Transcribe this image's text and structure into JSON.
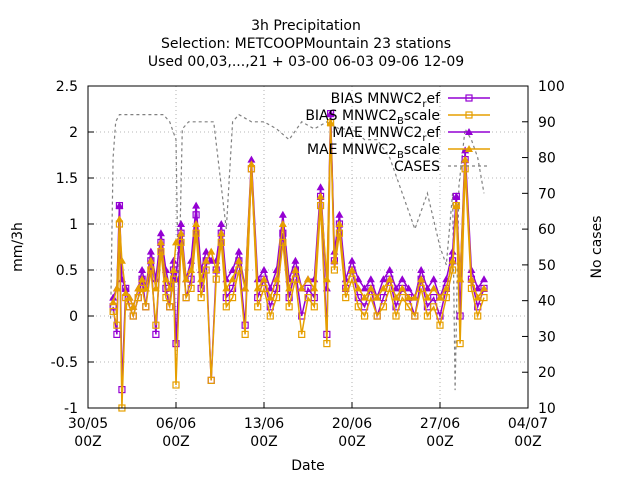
{
  "chart_data": {
    "type": "line",
    "title_lines": [
      "3h Precipitation",
      "Selection: METCOOPMountain      23 stations",
      "Used 00,03,...,21 + 03-00 06-03 09-06 12-09"
    ],
    "xlabel": "Date",
    "ylabel": "mm/3h",
    "y2label": "No cases",
    "x_ticks": [
      {
        "day": 0,
        "line1": "30/05",
        "line2": "00Z"
      },
      {
        "day": 7,
        "line1": "06/06",
        "line2": "00Z"
      },
      {
        "day": 14,
        "line1": "13/06",
        "line2": "00Z"
      },
      {
        "day": 21,
        "line1": "20/06",
        "line2": "00Z"
      },
      {
        "day": 28,
        "line1": "27/06",
        "line2": "00Z"
      },
      {
        "day": 35,
        "line1": "04/07",
        "line2": "00Z"
      }
    ],
    "xlim": [
      0,
      35
    ],
    "ylim": [
      -1,
      2.5
    ],
    "y_ticks": [
      "-1",
      "-0.5",
      "0",
      "0.5",
      "1",
      "1.5",
      "2",
      "2.5"
    ],
    "y2lim": [
      10,
      100
    ],
    "y2_ticks": [
      "10",
      "20",
      "30",
      "40",
      "50",
      "60",
      "70",
      "80",
      "90",
      "100"
    ],
    "grid": true,
    "legend_position": "top-right",
    "legend": [
      {
        "label_main": "BIAS MNWC2",
        "label_sub": "r",
        "label_tail": "ef",
        "color": "#9400d3",
        "marker": "square"
      },
      {
        "label_main": "BIAS MNWC2",
        "label_sub": "B",
        "label_tail": "scale",
        "color": "#e69f00",
        "marker": "square"
      },
      {
        "label_main": "MAE MNWC2",
        "label_sub": "r",
        "label_tail": "ef",
        "color": "#9400d3",
        "marker": "triangle"
      },
      {
        "label_main": "MAE MNWC2",
        "label_sub": "B",
        "label_tail": "scale",
        "color": "#e69f00",
        "marker": "triangle"
      },
      {
        "label_main": "CASES",
        "label_sub": "",
        "label_tail": "",
        "color": "#808080",
        "marker": "dashed"
      }
    ],
    "series": [
      {
        "name": "BIAS MNWC2_ref",
        "x": [
          2.0,
          2.3,
          2.5,
          2.7,
          3.0,
          3.3,
          3.6,
          4.0,
          4.3,
          4.6,
          5.0,
          5.4,
          5.8,
          6.2,
          6.5,
          6.8,
          7.0,
          7.4,
          7.8,
          8.2,
          8.6,
          9.0,
          9.4,
          9.8,
          10.2,
          10.6,
          11.0,
          11.5,
          12.0,
          12.5,
          13.0,
          13.5,
          14.0,
          14.5,
          15.0,
          15.5,
          16.0,
          16.5,
          17.0,
          17.5,
          18.0,
          18.5,
          19.0,
          19.3,
          19.6,
          20.0,
          20.5,
          21.0,
          21.5,
          22.0,
          22.5,
          23.0,
          23.5,
          24.0,
          24.5,
          25.0,
          25.5,
          26.0,
          26.5,
          27.0,
          27.5,
          28.0,
          28.5,
          29.0,
          29.3,
          29.6,
          30.0,
          30.5,
          31.0,
          31.5
        ],
        "y": [
          0.1,
          -0.2,
          1.2,
          -0.8,
          0.3,
          0.1,
          0.0,
          0.2,
          0.4,
          0.1,
          0.6,
          -0.2,
          0.8,
          0.3,
          0.1,
          0.5,
          -0.3,
          0.9,
          0.2,
          0.4,
          1.1,
          0.3,
          0.6,
          -0.7,
          0.5,
          0.9,
          0.2,
          0.3,
          0.6,
          -0.1,
          1.6,
          0.2,
          0.4,
          0.1,
          0.3,
          0.9,
          0.2,
          0.5,
          0.0,
          0.3,
          0.2,
          1.3,
          -0.2,
          2.2,
          0.6,
          1.0,
          0.3,
          0.5,
          0.2,
          0.1,
          0.3,
          0.0,
          0.2,
          0.4,
          0.1,
          0.3,
          0.2,
          0.0,
          0.4,
          0.1,
          0.2,
          0.0,
          0.3,
          0.6,
          1.3,
          0.0,
          1.7,
          0.4,
          0.1,
          0.3
        ]
      },
      {
        "name": "BIAS MNWC2_Bscale",
        "x": [
          2.0,
          2.3,
          2.5,
          2.7,
          3.0,
          3.3,
          3.6,
          4.0,
          4.3,
          4.6,
          5.0,
          5.4,
          5.8,
          6.2,
          6.5,
          6.8,
          7.0,
          7.4,
          7.8,
          8.2,
          8.6,
          9.0,
          9.4,
          9.8,
          10.2,
          10.6,
          11.0,
          11.5,
          12.0,
          12.5,
          13.0,
          13.5,
          14.0,
          14.5,
          15.0,
          15.5,
          16.0,
          16.5,
          17.0,
          17.5,
          18.0,
          18.5,
          19.0,
          19.3,
          19.6,
          20.0,
          20.5,
          21.0,
          21.5,
          22.0,
          22.5,
          23.0,
          23.5,
          24.0,
          24.5,
          25.0,
          25.5,
          26.0,
          26.5,
          27.0,
          27.5,
          28.0,
          28.5,
          29.0,
          29.3,
          29.6,
          30.0,
          30.5,
          31.0,
          31.5
        ],
        "y": [
          0.05,
          -0.1,
          1.0,
          -1.0,
          0.2,
          0.1,
          0.0,
          0.2,
          0.3,
          0.1,
          0.5,
          -0.1,
          0.7,
          0.2,
          0.1,
          0.4,
          -0.75,
          0.8,
          0.2,
          0.3,
          0.9,
          0.2,
          0.5,
          -0.7,
          0.4,
          0.8,
          0.1,
          0.2,
          0.5,
          -0.2,
          1.6,
          0.1,
          0.3,
          0.0,
          0.2,
          0.8,
          0.1,
          0.4,
          -0.2,
          0.2,
          0.1,
          1.2,
          -0.3,
          2.1,
          0.5,
          0.9,
          0.2,
          0.4,
          0.1,
          0.0,
          0.2,
          0.0,
          0.1,
          0.3,
          0.0,
          0.2,
          0.1,
          0.0,
          0.3,
          0.0,
          0.1,
          -0.1,
          0.2,
          0.5,
          1.2,
          -0.3,
          1.6,
          0.3,
          0.0,
          0.2
        ]
      },
      {
        "name": "MAE MNWC2_ref",
        "x": [
          2.0,
          2.3,
          2.5,
          2.7,
          3.0,
          3.3,
          3.6,
          4.0,
          4.3,
          4.6,
          5.0,
          5.4,
          5.8,
          6.2,
          6.5,
          6.8,
          7.0,
          7.4,
          7.8,
          8.2,
          8.6,
          9.0,
          9.4,
          9.8,
          10.2,
          10.6,
          11.0,
          11.5,
          12.0,
          12.5,
          13.0,
          13.5,
          14.0,
          14.5,
          15.0,
          15.5,
          16.0,
          16.5,
          17.0,
          17.5,
          18.0,
          18.5,
          19.0,
          19.3,
          19.6,
          20.0,
          20.5,
          21.0,
          21.5,
          22.0,
          22.5,
          23.0,
          23.5,
          24.0,
          24.5,
          25.0,
          25.5,
          26.0,
          26.5,
          27.0,
          27.5,
          28.0,
          28.5,
          29.0,
          29.3,
          29.6,
          30.0,
          30.5,
          31.0,
          31.5
        ],
        "y": [
          0.2,
          0.3,
          1.2,
          0.4,
          0.3,
          0.2,
          0.1,
          0.3,
          0.5,
          0.3,
          0.7,
          0.4,
          0.9,
          0.5,
          0.3,
          0.6,
          0.4,
          1.0,
          0.4,
          0.6,
          1.2,
          0.5,
          0.7,
          0.6,
          0.6,
          1.0,
          0.4,
          0.5,
          0.7,
          0.3,
          1.7,
          0.4,
          0.5,
          0.3,
          0.5,
          1.1,
          0.4,
          0.6,
          0.3,
          0.4,
          0.4,
          1.4,
          0.3,
          2.2,
          0.7,
          1.1,
          0.4,
          0.6,
          0.4,
          0.3,
          0.4,
          0.2,
          0.4,
          0.5,
          0.3,
          0.4,
          0.3,
          0.2,
          0.5,
          0.3,
          0.4,
          0.2,
          0.4,
          0.7,
          1.3,
          0.4,
          1.8,
          0.5,
          0.3,
          0.4
        ]
      },
      {
        "name": "MAE MNWC2_Bscale",
        "x": [
          2.0,
          2.3,
          2.5,
          2.7,
          3.0,
          3.3,
          3.6,
          4.0,
          4.3,
          4.6,
          5.0,
          5.4,
          5.8,
          6.2,
          6.5,
          6.8,
          7.0,
          7.4,
          7.8,
          8.2,
          8.6,
          9.0,
          9.4,
          9.8,
          10.2,
          10.6,
          11.0,
          11.5,
          12.0,
          12.5,
          13.0,
          13.5,
          14.0,
          14.5,
          15.0,
          15.5,
          16.0,
          16.5,
          17.0,
          17.5,
          18.0,
          18.5,
          19.0,
          19.3,
          19.6,
          20.0,
          20.5,
          21.0,
          21.5,
          22.0,
          22.5,
          23.0,
          23.5,
          24.0,
          24.5,
          25.0,
          25.5,
          26.0,
          26.5,
          27.0,
          27.5,
          28.0,
          28.5,
          29.0,
          29.3,
          29.6,
          30.0,
          30.5,
          31.0,
          31.5
        ],
        "y": [
          0.15,
          0.3,
          1.05,
          0.6,
          0.25,
          0.2,
          0.1,
          0.3,
          0.4,
          0.3,
          0.6,
          0.3,
          0.8,
          0.4,
          0.3,
          0.5,
          0.8,
          0.9,
          0.4,
          0.5,
          1.0,
          0.4,
          0.6,
          0.7,
          0.5,
          0.9,
          0.3,
          0.4,
          0.6,
          0.3,
          1.65,
          0.3,
          0.4,
          0.2,
          0.4,
          1.0,
          0.3,
          0.5,
          0.3,
          0.4,
          0.3,
          1.3,
          0.4,
          2.1,
          0.6,
          1.0,
          0.3,
          0.5,
          0.3,
          0.2,
          0.3,
          0.2,
          0.3,
          0.4,
          0.2,
          0.3,
          0.2,
          0.2,
          0.4,
          0.2,
          0.3,
          0.2,
          0.3,
          0.6,
          1.2,
          0.4,
          1.7,
          0.4,
          0.2,
          0.3
        ]
      },
      {
        "name": "CASES",
        "axis": "y2",
        "x": [
          1.8,
          2.0,
          2.2,
          2.5,
          3.0,
          4.0,
          5.0,
          6.0,
          6.5,
          7.0,
          7.2,
          7.5,
          8.0,
          9.0,
          10.0,
          11.0,
          11.5,
          12.0,
          13.0,
          14.0,
          15.0,
          16.0,
          17.0,
          18.0,
          19.0,
          20.0,
          21.0,
          22.0,
          23.0,
          24.0,
          25.0,
          26.0,
          27.0,
          28.0,
          28.5,
          29.0,
          29.2,
          29.5,
          30.0,
          30.5,
          31.0,
          31.5
        ],
        "y": [
          35,
          80,
          90,
          92,
          92,
          92,
          92,
          92,
          90,
          85,
          40,
          88,
          90,
          90,
          90,
          60,
          90,
          92,
          90,
          90,
          88,
          85,
          90,
          88,
          90,
          88,
          88,
          85,
          85,
          80,
          70,
          60,
          70,
          55,
          50,
          70,
          15,
          72,
          88,
          85,
          80,
          70
        ]
      }
    ]
  }
}
